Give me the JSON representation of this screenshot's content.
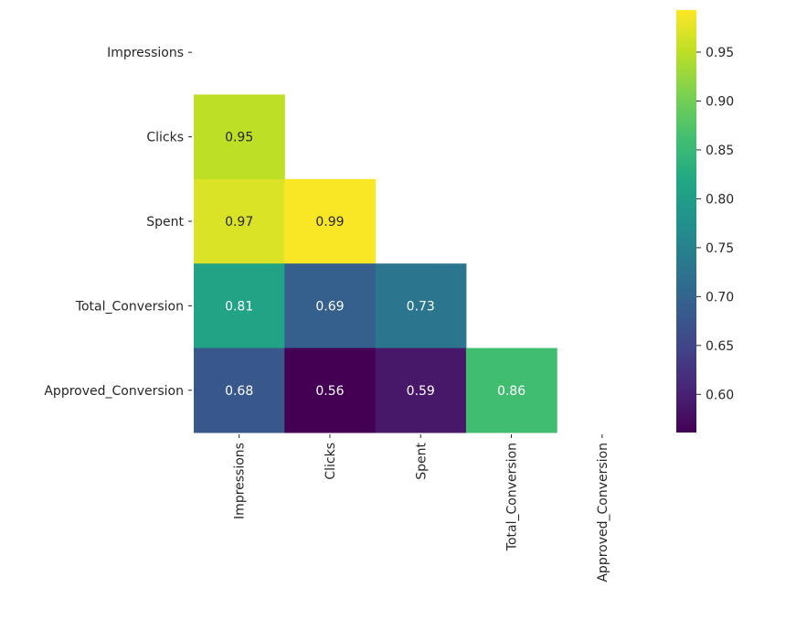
{
  "chart_data": {
    "type": "heatmap",
    "title": "",
    "colormap": "viridis",
    "mask": "upper-triangle",
    "row_labels": [
      "Impressions",
      "Clicks",
      "Spent",
      "Total_Conversion",
      "Approved_Conversion"
    ],
    "col_labels": [
      "Impressions",
      "Clicks",
      "Spent",
      "Total_Conversion",
      "Approved_Conversion"
    ],
    "values": [
      [
        null,
        null,
        null,
        null,
        null
      ],
      [
        0.95,
        null,
        null,
        null,
        null
      ],
      [
        0.97,
        0.99,
        null,
        null,
        null
      ],
      [
        0.81,
        0.69,
        0.73,
        null,
        null
      ],
      [
        0.68,
        0.56,
        0.59,
        0.86,
        null
      ]
    ],
    "annotations": [
      [
        null,
        null,
        null,
        null,
        null
      ],
      [
        "0.95",
        null,
        null,
        null,
        null
      ],
      [
        "0.97",
        "0.99",
        null,
        null,
        null
      ],
      [
        "0.81",
        "0.69",
        "0.73",
        null,
        null
      ],
      [
        "0.68",
        "0.56",
        "0.59",
        "0.86",
        null
      ]
    ],
    "colorbar": {
      "range": [
        0.561,
        0.993
      ],
      "ticks": [
        0.6,
        0.65,
        0.7,
        0.75,
        0.8,
        0.85,
        0.9,
        0.95
      ],
      "tick_labels": [
        "0.60",
        "0.65",
        "0.70",
        "0.75",
        "0.80",
        "0.85",
        "0.90",
        "0.95"
      ]
    }
  }
}
